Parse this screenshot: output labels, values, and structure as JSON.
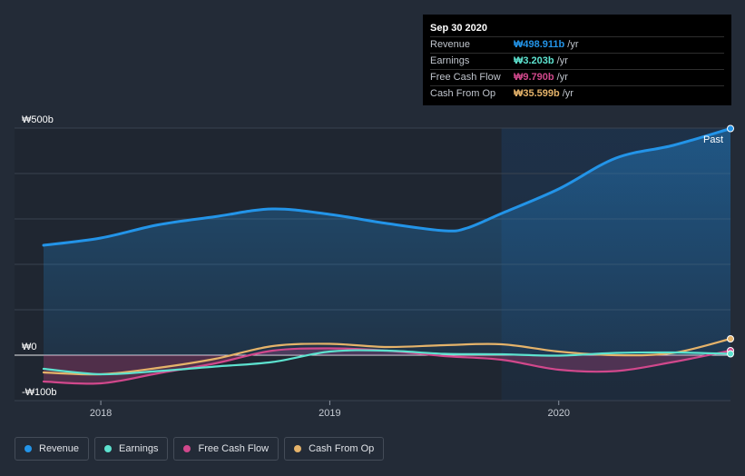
{
  "tooltip": {
    "date": "Sep 30 2020",
    "rows": [
      {
        "label": "Revenue",
        "value": "₩498.911b",
        "unit": "/yr",
        "color": "#2394e8"
      },
      {
        "label": "Earnings",
        "value": "₩3.203b",
        "unit": "/yr",
        "color": "#5de2cf"
      },
      {
        "label": "Free Cash Flow",
        "value": "₩9.790b",
        "unit": "/yr",
        "color": "#d1488c"
      },
      {
        "label": "Cash From Op",
        "value": "₩35.599b",
        "unit": "/yr",
        "color": "#e5b36a"
      }
    ]
  },
  "past_label": "Past",
  "legend": [
    {
      "label": "Revenue",
      "color": "#2394e8"
    },
    {
      "label": "Earnings",
      "color": "#5de2cf"
    },
    {
      "label": "Free Cash Flow",
      "color": "#d1488c"
    },
    {
      "label": "Cash From Op",
      "color": "#e5b36a"
    }
  ],
  "chart_data": {
    "type": "line",
    "y_unit": "₩b",
    "y_ticks": [
      {
        "value": 500,
        "label": "₩500b"
      },
      {
        "value": 0,
        "label": "₩0"
      },
      {
        "value": -100,
        "label": "-₩100b"
      }
    ],
    "x_ticks": [
      {
        "value": 2018.0,
        "label": "2018"
      },
      {
        "value": 2019.0,
        "label": "2019"
      },
      {
        "value": 2020.0,
        "label": "2020"
      }
    ],
    "xlim": [
      2017.75,
      2020.75
    ],
    "ylim": [
      -100,
      500
    ],
    "past_region_start": 2019.75,
    "series": [
      {
        "name": "Revenue",
        "color": "#2394e8",
        "area": true,
        "x": [
          2017.75,
          2018.0,
          2018.25,
          2018.5,
          2018.75,
          2019.0,
          2019.25,
          2019.5,
          2019.6,
          2019.75,
          2020.0,
          2020.25,
          2020.5,
          2020.75
        ],
        "y": [
          242,
          258,
          287,
          305,
          322,
          310,
          290,
          274,
          280,
          312,
          366,
          434,
          462,
          499
        ]
      },
      {
        "name": "Earnings",
        "color": "#5de2cf",
        "area": false,
        "x": [
          2017.75,
          2018.0,
          2018.25,
          2018.5,
          2018.75,
          2019.0,
          2019.25,
          2019.5,
          2019.75,
          2020.0,
          2020.25,
          2020.5,
          2020.75
        ],
        "y": [
          -30,
          -42,
          -35,
          -25,
          -15,
          8,
          10,
          3,
          2,
          -1,
          5,
          6,
          3
        ]
      },
      {
        "name": "Free Cash Flow",
        "color": "#d1488c",
        "area": true,
        "x": [
          2017.75,
          2018.0,
          2018.25,
          2018.5,
          2018.75,
          2019.0,
          2019.25,
          2019.5,
          2019.75,
          2020.0,
          2020.25,
          2020.5,
          2020.75
        ],
        "y": [
          -58,
          -62,
          -40,
          -18,
          10,
          15,
          10,
          -2,
          -10,
          -32,
          -35,
          -15,
          10
        ]
      },
      {
        "name": "Cash From Op",
        "color": "#e5b36a",
        "area": false,
        "x": [
          2017.75,
          2018.0,
          2018.25,
          2018.5,
          2018.75,
          2019.0,
          2019.25,
          2019.5,
          2019.75,
          2020.0,
          2020.25,
          2020.5,
          2020.75
        ],
        "y": [
          -38,
          -42,
          -28,
          -8,
          20,
          25,
          18,
          22,
          24,
          8,
          0,
          5,
          36
        ]
      }
    ]
  }
}
